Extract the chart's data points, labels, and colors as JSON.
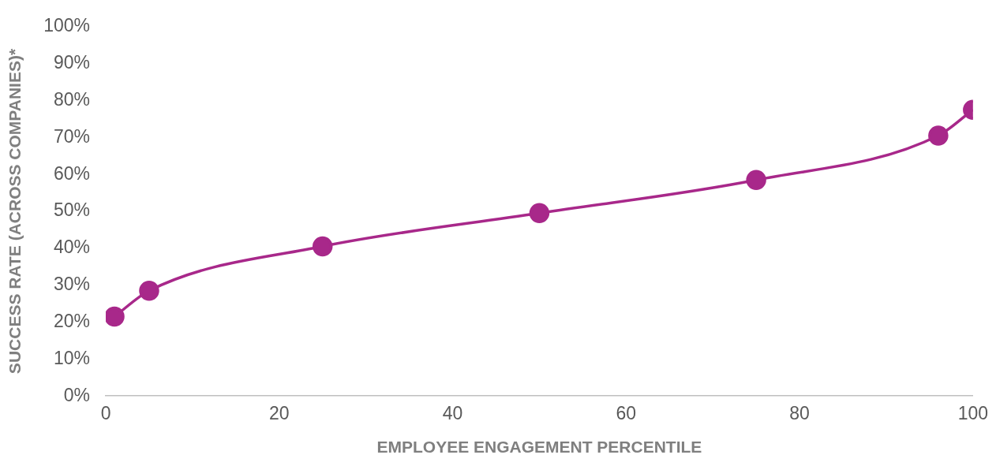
{
  "chart_data": {
    "type": "line",
    "xlabel": "EMPLOYEE ENGAGEMENT PERCENTILE",
    "ylabel": "SUCCESS RATE (ACROSS COMPANIES)*",
    "x": [
      1,
      5,
      25,
      50,
      75,
      96,
      100
    ],
    "series": [
      {
        "color": "#a8288a",
        "values": [
          21.5,
          28.5,
          40.5,
          49.5,
          58.5,
          70.5,
          77.5
        ]
      }
    ],
    "xlim": [
      0,
      100
    ],
    "xticks": [
      0,
      20,
      40,
      60,
      80,
      100
    ],
    "ylim": [
      0,
      100
    ],
    "yticks": [
      {
        "value": 0,
        "label": "0%"
      },
      {
        "value": 10,
        "label": "10%"
      },
      {
        "value": 20,
        "label": "20%"
      },
      {
        "value": 30,
        "label": "30%"
      },
      {
        "value": 40,
        "label": "40%"
      },
      {
        "value": 50,
        "label": "50%"
      },
      {
        "value": 60,
        "label": "60%"
      },
      {
        "value": 70,
        "label": "70%"
      },
      {
        "value": 80,
        "label": "80%"
      },
      {
        "value": 90,
        "label": "90%"
      },
      {
        "value": 100,
        "label": "100%"
      }
    ],
    "marker": "circle",
    "line_style": "solid",
    "grid": false,
    "legend": false
  }
}
